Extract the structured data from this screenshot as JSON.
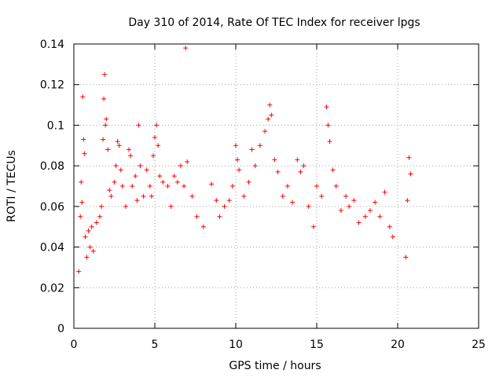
{
  "chart_data": {
    "type": "scatter",
    "title": "Day 310 of 2014, Rate Of TEC Index for receiver lpgs",
    "xlabel": "GPS time / hours",
    "ylabel": "ROTI / TECUs",
    "xlim": [
      0,
      25
    ],
    "ylim": [
      0,
      0.14
    ],
    "xticks": [
      0,
      5,
      10,
      15,
      20,
      25
    ],
    "xtick_labels": [
      "0",
      "5",
      "10",
      "15",
      "20",
      "25"
    ],
    "yticks": [
      0,
      0.02,
      0.04,
      0.06,
      0.08,
      0.1,
      0.12,
      0.14
    ],
    "ytick_labels": [
      "0",
      "0.02",
      "0.04",
      "0.06",
      "0.08",
      "0.1",
      "0.12",
      "0.14"
    ],
    "grid": true,
    "marker": "+",
    "color": "#ff0000",
    "series": [
      {
        "name": "ROTI",
        "points": [
          [
            0.3,
            0.028
          ],
          [
            0.4,
            0.055
          ],
          [
            0.45,
            0.072
          ],
          [
            0.5,
            0.062
          ],
          [
            0.55,
            0.114
          ],
          [
            0.6,
            0.093
          ],
          [
            0.65,
            0.086
          ],
          [
            0.7,
            0.045
          ],
          [
            0.8,
            0.035
          ],
          [
            0.9,
            0.048
          ],
          [
            1.0,
            0.04
          ],
          [
            1.1,
            0.05
          ],
          [
            1.2,
            0.038
          ],
          [
            1.4,
            0.052
          ],
          [
            1.6,
            0.055
          ],
          [
            1.7,
            0.06
          ],
          [
            1.8,
            0.093
          ],
          [
            1.85,
            0.113
          ],
          [
            1.9,
            0.125
          ],
          [
            1.95,
            0.1
          ],
          [
            2.0,
            0.103
          ],
          [
            2.1,
            0.088
          ],
          [
            2.2,
            0.068
          ],
          [
            2.3,
            0.065
          ],
          [
            2.5,
            0.072
          ],
          [
            2.6,
            0.08
          ],
          [
            2.7,
            0.092
          ],
          [
            2.8,
            0.09
          ],
          [
            2.9,
            0.078
          ],
          [
            3.0,
            0.07
          ],
          [
            3.2,
            0.06
          ],
          [
            3.4,
            0.088
          ],
          [
            3.5,
            0.085
          ],
          [
            3.6,
            0.07
          ],
          [
            3.8,
            0.075
          ],
          [
            3.9,
            0.063
          ],
          [
            4.0,
            0.1
          ],
          [
            4.1,
            0.08
          ],
          [
            4.3,
            0.065
          ],
          [
            4.5,
            0.078
          ],
          [
            4.7,
            0.07
          ],
          [
            4.8,
            0.065
          ],
          [
            4.9,
            0.085
          ],
          [
            5.0,
            0.094
          ],
          [
            5.1,
            0.1
          ],
          [
            5.2,
            0.09
          ],
          [
            5.3,
            0.075
          ],
          [
            5.5,
            0.072
          ],
          [
            5.8,
            0.07
          ],
          [
            6.0,
            0.06
          ],
          [
            6.2,
            0.075
          ],
          [
            6.4,
            0.072
          ],
          [
            6.6,
            0.08
          ],
          [
            6.8,
            0.07
          ],
          [
            6.9,
            0.138
          ],
          [
            7.0,
            0.082
          ],
          [
            7.3,
            0.065
          ],
          [
            7.6,
            0.055
          ],
          [
            8.0,
            0.05
          ],
          [
            8.5,
            0.071
          ],
          [
            8.8,
            0.063
          ],
          [
            9.0,
            0.055
          ],
          [
            9.3,
            0.06
          ],
          [
            9.6,
            0.063
          ],
          [
            9.8,
            0.07
          ],
          [
            10.0,
            0.09
          ],
          [
            10.1,
            0.083
          ],
          [
            10.2,
            0.078
          ],
          [
            10.5,
            0.065
          ],
          [
            10.8,
            0.072
          ],
          [
            11.0,
            0.088
          ],
          [
            11.2,
            0.08
          ],
          [
            11.5,
            0.09
          ],
          [
            11.8,
            0.097
          ],
          [
            12.0,
            0.103
          ],
          [
            12.1,
            0.11
          ],
          [
            12.2,
            0.105
          ],
          [
            12.4,
            0.083
          ],
          [
            12.6,
            0.077
          ],
          [
            12.9,
            0.065
          ],
          [
            13.2,
            0.07
          ],
          [
            13.5,
            0.062
          ],
          [
            13.8,
            0.083
          ],
          [
            14.0,
            0.077
          ],
          [
            14.2,
            0.08
          ],
          [
            14.5,
            0.06
          ],
          [
            14.8,
            0.05
          ],
          [
            15.0,
            0.07
          ],
          [
            15.3,
            0.065
          ],
          [
            15.6,
            0.109
          ],
          [
            15.7,
            0.1
          ],
          [
            15.8,
            0.092
          ],
          [
            16.0,
            0.078
          ],
          [
            16.2,
            0.07
          ],
          [
            16.5,
            0.058
          ],
          [
            16.8,
            0.065
          ],
          [
            17.0,
            0.06
          ],
          [
            17.3,
            0.063
          ],
          [
            17.6,
            0.052
          ],
          [
            18.0,
            0.055
          ],
          [
            18.3,
            0.058
          ],
          [
            18.6,
            0.062
          ],
          [
            18.9,
            0.055
          ],
          [
            19.2,
            0.067
          ],
          [
            19.5,
            0.05
          ],
          [
            19.7,
            0.045
          ],
          [
            20.5,
            0.035
          ],
          [
            20.6,
            0.063
          ],
          [
            20.7,
            0.084
          ],
          [
            20.8,
            0.076
          ]
        ]
      }
    ]
  }
}
